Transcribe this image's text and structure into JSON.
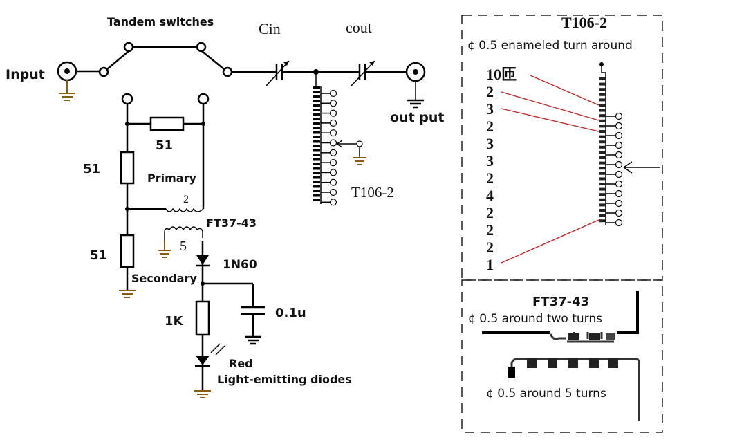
{
  "labels": {
    "tandem_switches": "Tandem switches",
    "input": "Input",
    "cin": "Cin",
    "cout": "cout",
    "output": "out put",
    "t106_main": "T106-2",
    "r_series": "51",
    "r_top": "51",
    "r_bottom": "51",
    "primary": "Primary",
    "primary_turns": "2",
    "ft37": "FT37-43",
    "secondary_turns": "5",
    "diode": "1N60",
    "secondary": "Secondary",
    "r_1k": "1K",
    "cap": "0.1u",
    "led_color": "Red",
    "led": "Light-emitting diodes"
  },
  "t106_panel": {
    "title": "T106-2",
    "subtitle": "¢ 0.5 enameled turn around",
    "turns": [
      "10匝",
      "2",
      "3",
      "2",
      "3",
      "3",
      "2",
      "4",
      "2",
      "2",
      "2",
      "1"
    ]
  },
  "ft37_panel": {
    "title": "FT37-43",
    "primary_note": "¢ 0.5 around two turns",
    "secondary_note": "¢ 0.5 around 5 turns"
  },
  "colors": {
    "wire": "#000000",
    "leader": "#bb2222",
    "ground": "#8a5a10"
  }
}
